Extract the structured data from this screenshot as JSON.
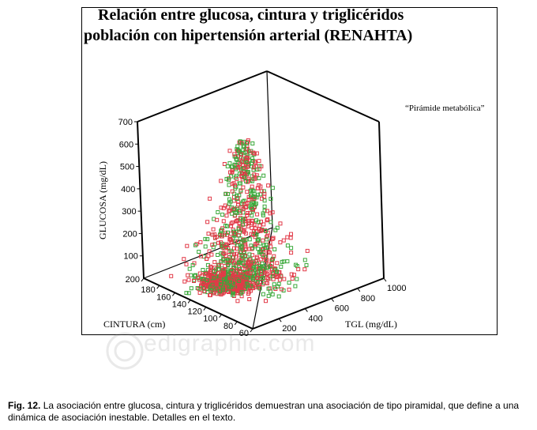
{
  "chart_data": {
    "type": "scatter",
    "title": "Relación entre glucosa, cintura y triglicéridos",
    "subtitle": "población con hipertensión arterial (RENAHTA)",
    "annotation": "“Pirámide metabólica”",
    "z_axis": {
      "label": "GLUCOSA (mg/dL)",
      "ticks": [
        "100",
        "200",
        "300",
        "400",
        "500",
        "600",
        "700"
      ],
      "range": [
        0,
        700
      ]
    },
    "y_axis": {
      "label": "CINTURA  (cm)",
      "ticks": [
        "200",
        "180",
        "160",
        "140",
        "120",
        "100",
        "80",
        "60"
      ],
      "range": [
        60,
        200
      ]
    },
    "x_axis": {
      "label": "TGL (mg/dL)",
      "ticks": [
        "200",
        "400",
        "600",
        "800",
        "1000"
      ],
      "range": [
        0,
        1000
      ]
    },
    "series_colors": [
      "#e23a48",
      "#3aa83a"
    ],
    "grid": false,
    "note": "Dense point cloud forming a pyramid shape; values estimated."
  },
  "figure": {
    "watermark": "edigraphic.com",
    "caption_label": "Fig. 12.",
    "caption_text": "La asociación entre glucosa, cintura y triglicéridos demuestran una asociación de tipo piramidal, que define a una dinámica de asociación inestable. Detalles en el texto."
  }
}
